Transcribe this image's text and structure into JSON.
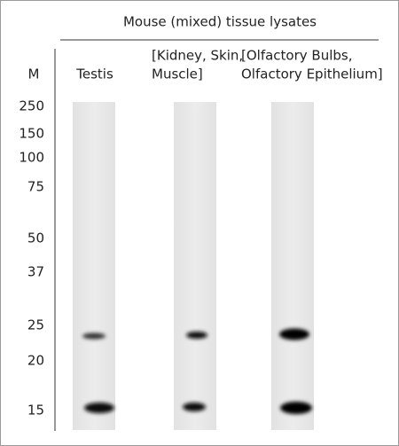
{
  "header": {
    "title": "Mouse (mixed) tissue lysates"
  },
  "marker_label": "M",
  "markers": [
    250,
    150,
    100,
    75,
    50,
    37,
    25,
    20,
    15
  ],
  "lanes": [
    {
      "label": [
        "Testis"
      ]
    },
    {
      "label": [
        "[Kidney, Skin,",
        "Muscle]"
      ]
    },
    {
      "label": [
        "[Olfactory Bulbs,",
        "Olfactory Epithelium]"
      ]
    }
  ]
}
